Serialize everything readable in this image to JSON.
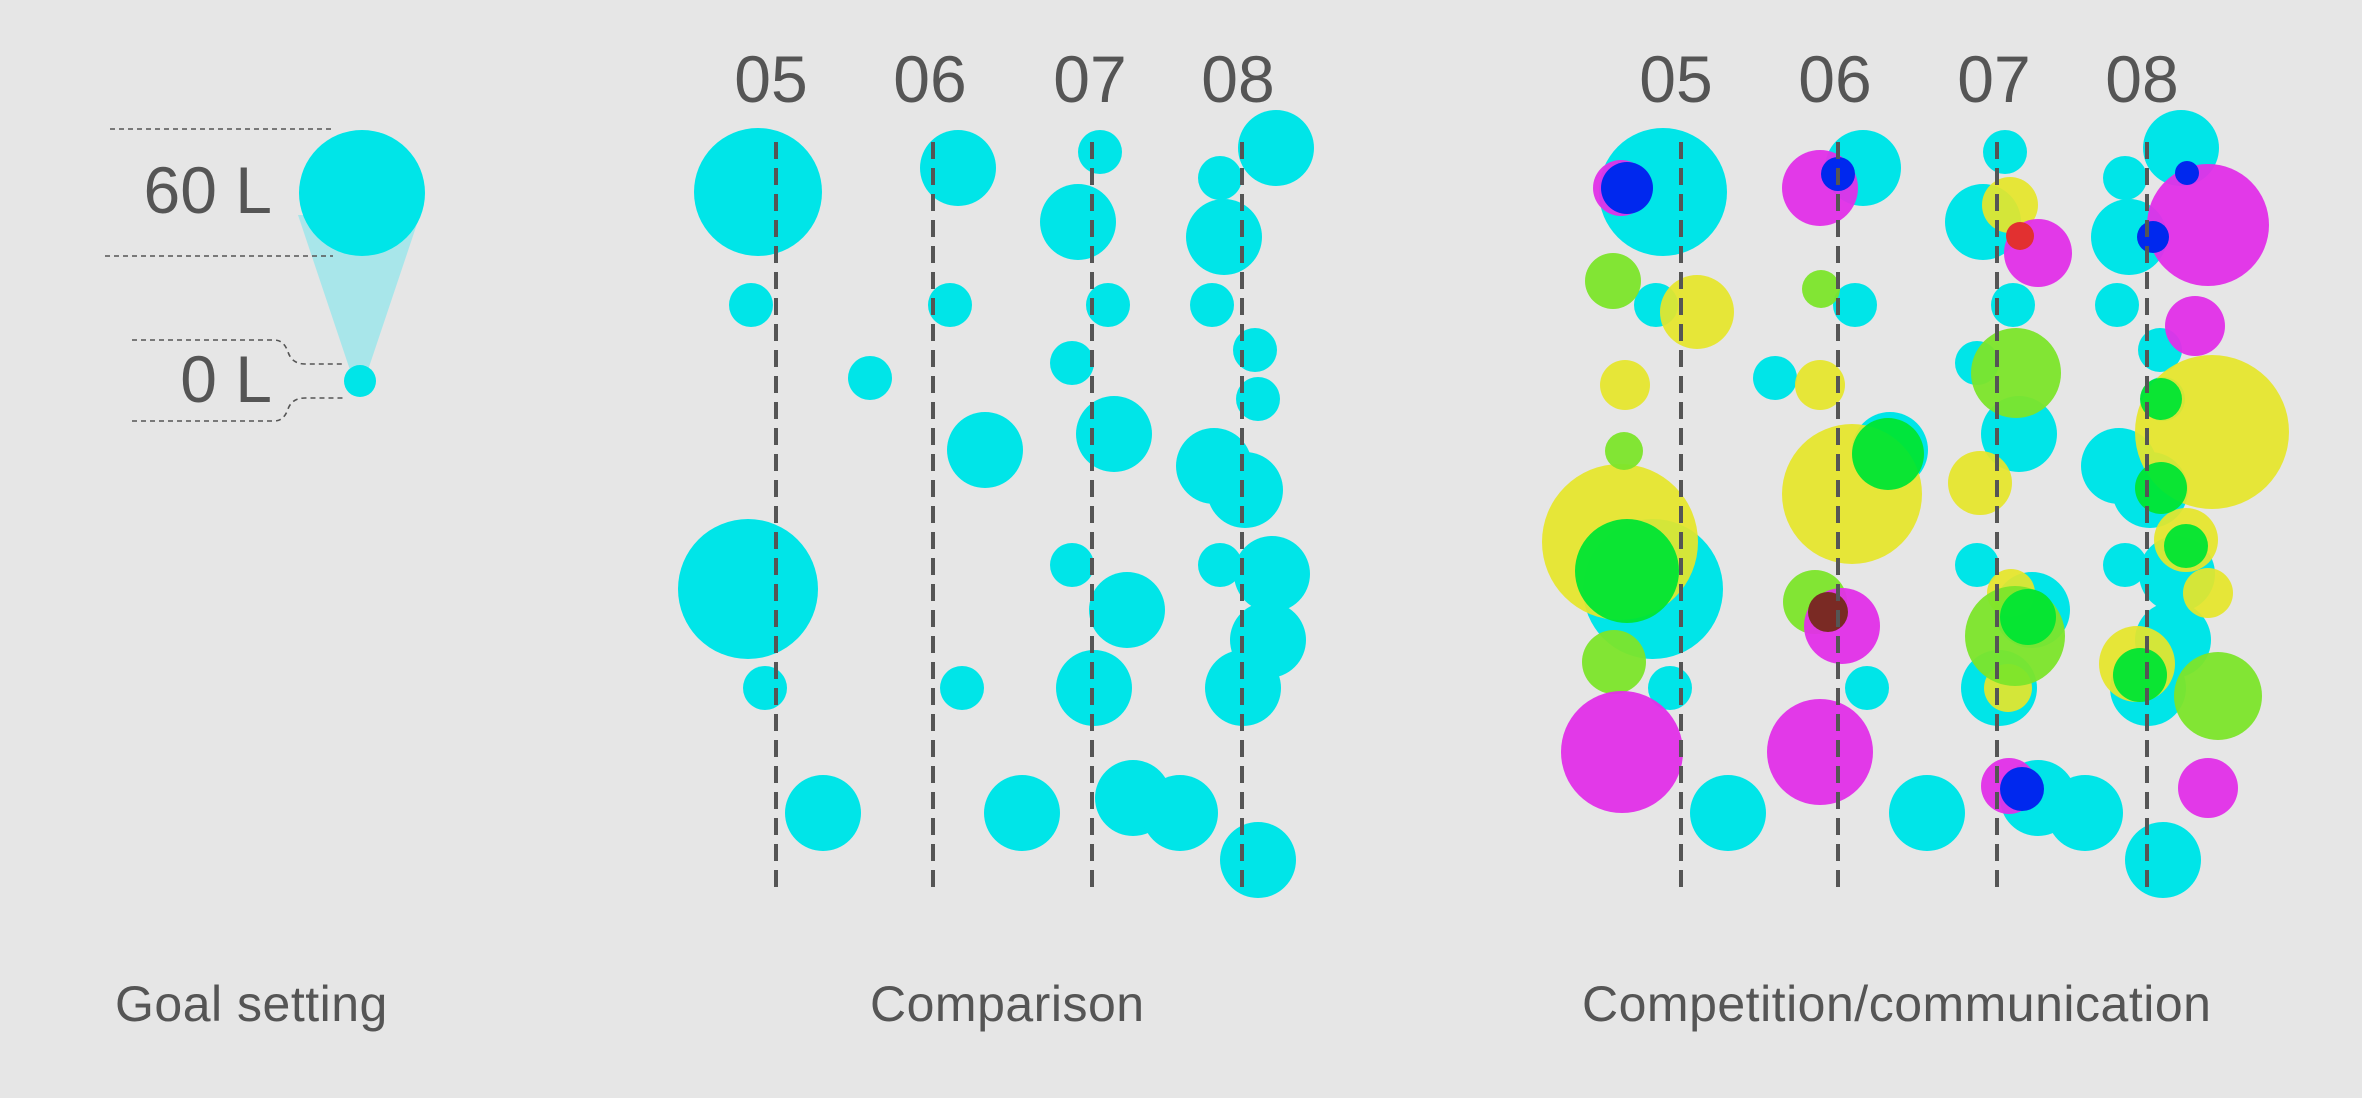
{
  "colors": {
    "background": "#e6e6e6",
    "text": "#555555",
    "cyan": "#00e5e8",
    "cyan_light": "#a8e6ea",
    "magenta": "#e22fe8",
    "yellow": "#e6e629",
    "green": "#00e533",
    "lime": "#7ce52a",
    "blue": "#0028ee",
    "maroon": "#7a2a24"
  },
  "goal_setting": {
    "max_label": "60 L",
    "min_label": "0 L",
    "caption": "Goal setting"
  },
  "comparison": {
    "caption": "Comparison",
    "columns": [
      "05",
      "06",
      "07",
      "08"
    ]
  },
  "competition": {
    "caption": "Competition/communication",
    "columns": [
      "05",
      "06",
      "07",
      "08"
    ]
  }
}
